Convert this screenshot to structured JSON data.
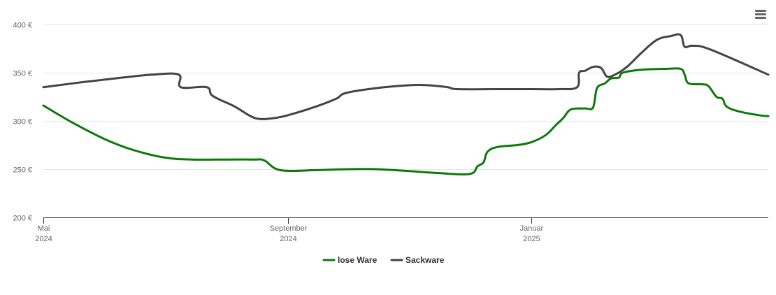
{
  "menu": {
    "icon": "hamburger-menu-icon"
  },
  "chart_data": {
    "type": "line",
    "title": "",
    "xlabel": "",
    "ylabel": "",
    "x_ticks": [
      {
        "date": "2024-05-01",
        "line1": "Mai",
        "line2": "2024"
      },
      {
        "date": "2024-09-01",
        "line1": "September",
        "line2": "2024"
      },
      {
        "date": "2025-01-01",
        "line1": "Januar",
        "line2": "2025"
      }
    ],
    "y_ticks": [
      {
        "value": 200,
        "label": "200 €"
      },
      {
        "value": 250,
        "label": "250 €"
      },
      {
        "value": 300,
        "label": "300 €"
      },
      {
        "value": 350,
        "label": "350 €"
      },
      {
        "value": 400,
        "label": "400 €"
      }
    ],
    "xlim": [
      "2024-05-01",
      "2025-04-30"
    ],
    "ylim": [
      200,
      400
    ],
    "grid": true,
    "legend_position": "bottom-center",
    "series": [
      {
        "name": "lose Ware",
        "color": "#0b7a0b",
        "points": [
          [
            "2024-05-01",
            316
          ],
          [
            "2024-05-15",
            299
          ],
          [
            "2024-06-01",
            281
          ],
          [
            "2024-06-15",
            270
          ],
          [
            "2024-07-01",
            262
          ],
          [
            "2024-07-15",
            260
          ],
          [
            "2024-08-01",
            260
          ],
          [
            "2024-08-15",
            260
          ],
          [
            "2024-08-20",
            259
          ],
          [
            "2024-08-28",
            249
          ],
          [
            "2024-09-15",
            249
          ],
          [
            "2024-10-01",
            250
          ],
          [
            "2024-10-15",
            250
          ],
          [
            "2024-11-01",
            248
          ],
          [
            "2024-11-15",
            246
          ],
          [
            "2024-12-01",
            245
          ],
          [
            "2024-12-05",
            253
          ],
          [
            "2024-12-08",
            257
          ],
          [
            "2024-12-10",
            268
          ],
          [
            "2024-12-15",
            273
          ],
          [
            "2024-12-25",
            275
          ],
          [
            "2025-01-01",
            278
          ],
          [
            "2025-01-08",
            285
          ],
          [
            "2025-01-13",
            295
          ],
          [
            "2025-01-17",
            303
          ],
          [
            "2025-01-21",
            312
          ],
          [
            "2025-01-28",
            313
          ],
          [
            "2025-02-01",
            314
          ],
          [
            "2025-02-03",
            334
          ],
          [
            "2025-02-07",
            339
          ],
          [
            "2025-02-10",
            344
          ],
          [
            "2025-02-14",
            345
          ],
          [
            "2025-02-16",
            350
          ],
          [
            "2025-02-25",
            353
          ],
          [
            "2025-03-10",
            354
          ],
          [
            "2025-03-17",
            354
          ],
          [
            "2025-03-19",
            348
          ],
          [
            "2025-03-21",
            339
          ],
          [
            "2025-03-28",
            338
          ],
          [
            "2025-03-31",
            336
          ],
          [
            "2025-04-04",
            325
          ],
          [
            "2025-04-07",
            323
          ],
          [
            "2025-04-09",
            315
          ],
          [
            "2025-04-15",
            310
          ],
          [
            "2025-04-25",
            306
          ],
          [
            "2025-04-30",
            305
          ]
        ]
      },
      {
        "name": "Sackware",
        "color": "#434348",
        "points": [
          [
            "2024-05-01",
            335
          ],
          [
            "2024-05-20",
            340
          ],
          [
            "2024-06-10",
            345
          ],
          [
            "2024-06-25",
            348
          ],
          [
            "2024-07-08",
            348
          ],
          [
            "2024-07-09",
            335
          ],
          [
            "2024-07-22",
            335
          ],
          [
            "2024-07-25",
            326
          ],
          [
            "2024-08-05",
            315
          ],
          [
            "2024-08-13",
            305
          ],
          [
            "2024-08-18",
            302
          ],
          [
            "2024-08-25",
            303
          ],
          [
            "2024-09-01",
            306
          ],
          [
            "2024-09-15",
            315
          ],
          [
            "2024-09-25",
            323
          ],
          [
            "2024-09-30",
            329
          ],
          [
            "2024-10-15",
            334
          ],
          [
            "2024-11-01",
            337
          ],
          [
            "2024-11-10",
            337
          ],
          [
            "2024-11-20",
            335
          ],
          [
            "2024-11-25",
            333
          ],
          [
            "2024-12-15",
            333
          ],
          [
            "2025-01-01",
            333
          ],
          [
            "2025-01-15",
            333
          ],
          [
            "2025-01-24",
            335
          ],
          [
            "2025-01-25",
            350
          ],
          [
            "2025-01-28",
            352
          ],
          [
            "2025-02-01",
            356
          ],
          [
            "2025-02-05",
            355
          ],
          [
            "2025-02-08",
            346
          ],
          [
            "2025-02-12",
            348
          ],
          [
            "2025-02-18",
            356
          ],
          [
            "2025-02-25",
            370
          ],
          [
            "2025-03-05",
            384
          ],
          [
            "2025-03-12",
            388
          ],
          [
            "2025-03-17",
            389
          ],
          [
            "2025-03-19",
            377
          ],
          [
            "2025-03-23",
            378
          ],
          [
            "2025-04-01",
            374
          ],
          [
            "2025-04-30",
            348
          ]
        ]
      }
    ]
  }
}
